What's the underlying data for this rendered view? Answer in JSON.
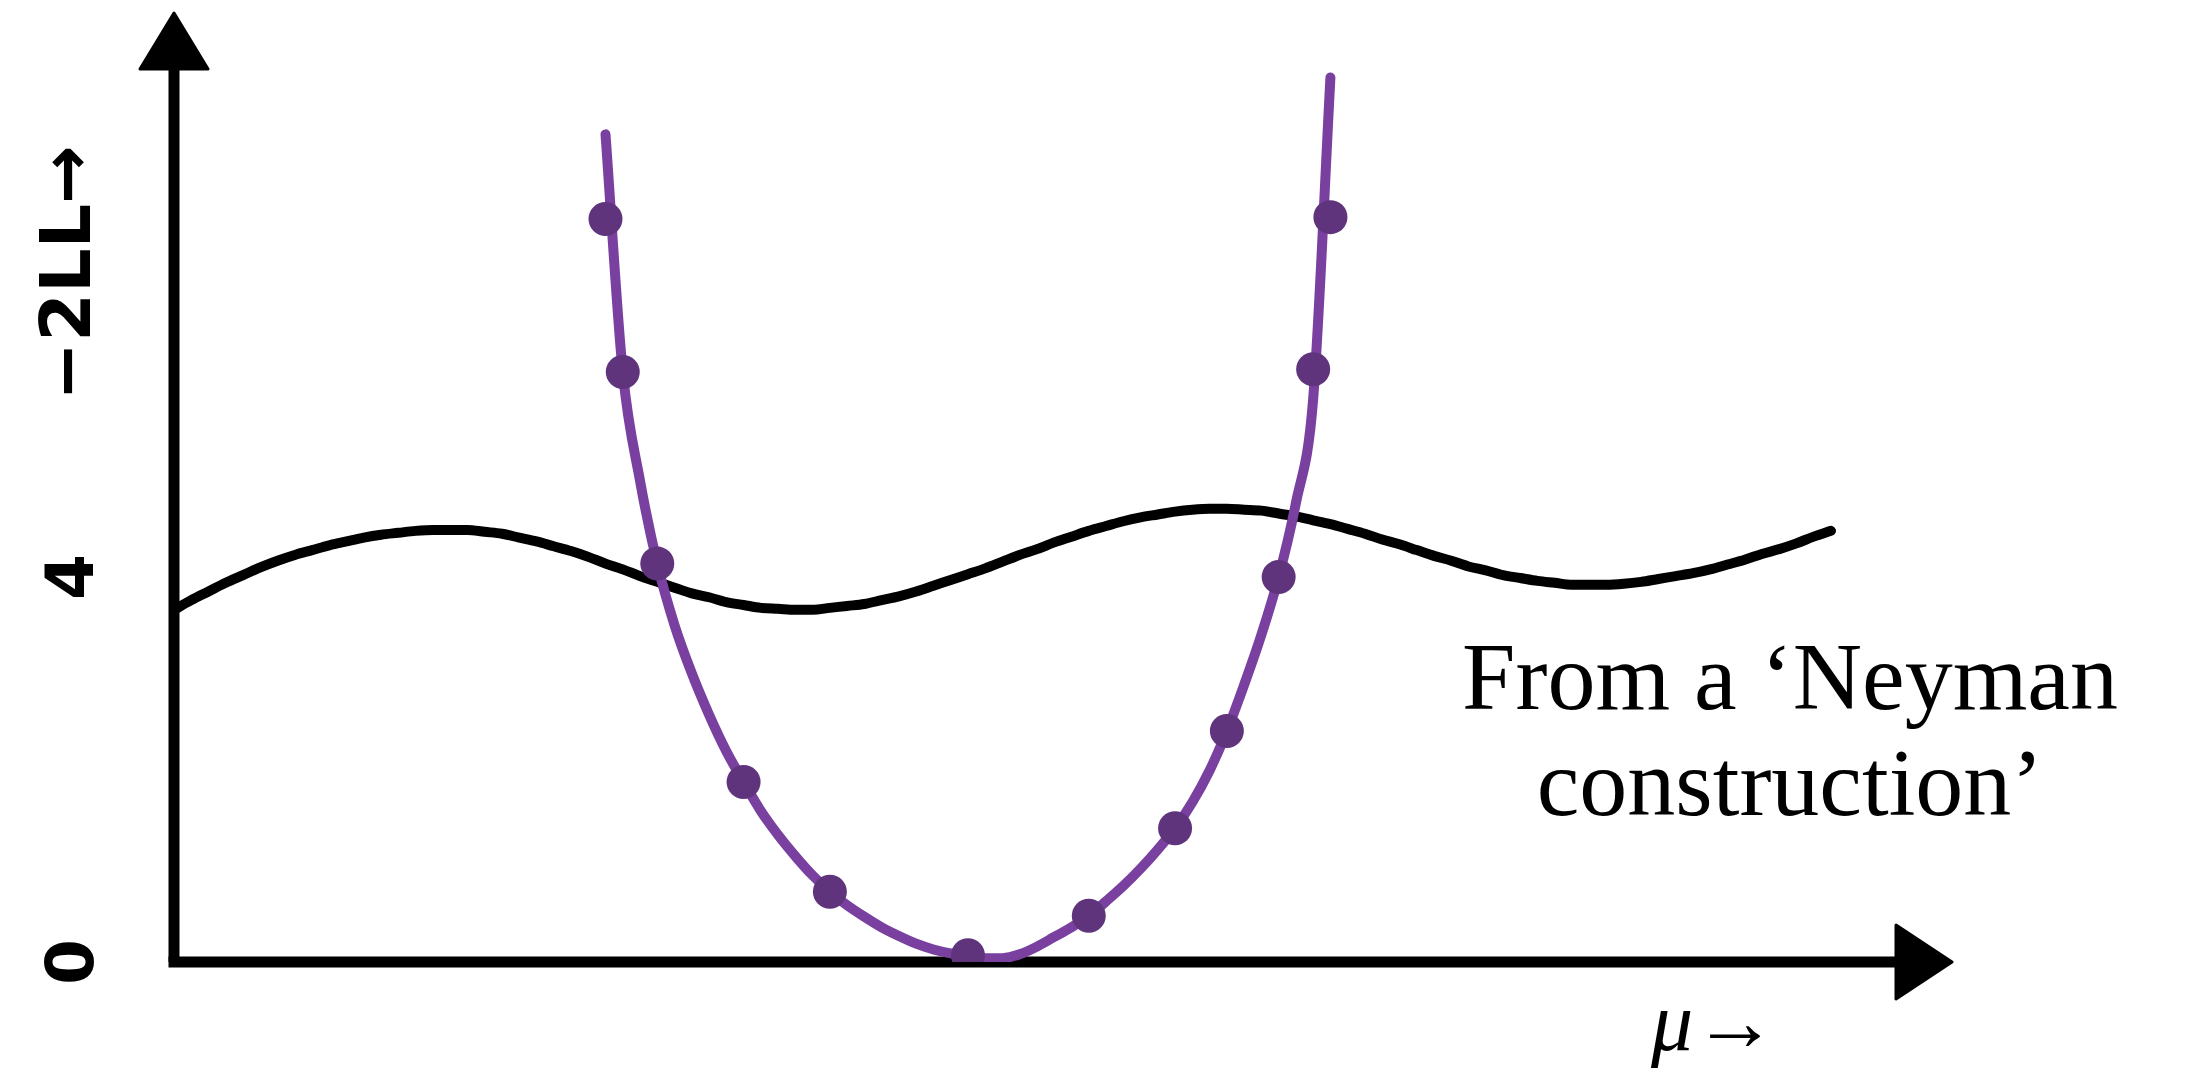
{
  "chart_data": {
    "type": "line",
    "xlabel": "μ→",
    "ylabel": "−2LL→",
    "annotations": [
      "From a ‘Neyman construction’"
    ],
    "categories": [
      null,
      null,
      null,
      null,
      null,
      null,
      null,
      null,
      null,
      null,
      null,
      null,
      null,
      null,
      null,
      null,
      null,
      null,
      null,
      null,
      null,
      null,
      null,
      null,
      null,
      null,
      null,
      null,
      null,
      null,
      null,
      null,
      null,
      null,
      null,
      null,
      null,
      null,
      null,
      null,
      null,
      null,
      null,
      null,
      null,
      null,
      null,
      null,
      null,
      null,
      null,
      null,
      null,
      null,
      null,
      null,
      null,
      null,
      null,
      null,
      null,
      null,
      null,
      null,
      null,
      null,
      null,
      null,
      null,
      null,
      null,
      null,
      null,
      null,
      null,
      null,
      null,
      null,
      null,
      null,
      null,
      null,
      null,
      null,
      null,
      null,
      null,
      null,
      null,
      null,
      null,
      null,
      null,
      null,
      null,
      null,
      null,
      null,
      null,
      null,
      null
    ],
    "series": [
      {
        "color": "#000000",
        "values": [
          3.66,
          3.76,
          3.85,
          3.94,
          4.02,
          4.1,
          4.17,
          4.23,
          4.28,
          4.33,
          4.37,
          4.41,
          4.44,
          4.46,
          4.48,
          4.49,
          4.49,
          4.49,
          4.47,
          4.45,
          4.41,
          4.37,
          4.32,
          4.27,
          4.21,
          4.14,
          4.08,
          4.01,
          3.95,
          3.89,
          3.83,
          3.79,
          3.74,
          3.71,
          3.68,
          3.67,
          3.66,
          3.66,
          3.68,
          3.7,
          3.72,
          3.76,
          3.8,
          3.85,
          3.91,
          3.97,
          4.03,
          4.09,
          4.16,
          4.23,
          4.29,
          4.36,
          4.42,
          4.48,
          4.53,
          4.58,
          4.62,
          4.65,
          4.68,
          4.7,
          4.71,
          4.71,
          4.7,
          4.69,
          4.66,
          4.63,
          4.59,
          4.55,
          4.5,
          4.45,
          4.39,
          4.34,
          4.28,
          4.22,
          4.17,
          4.11,
          4.07,
          4.02,
          3.99,
          3.96,
          3.94,
          3.92,
          3.92,
          3.92,
          3.93,
          3.95,
          3.98,
          4.01,
          4.04,
          4.08,
          4.13,
          4.18,
          4.24,
          4.29,
          4.35,
          4.42,
          4.48,
          null,
          null,
          null,
          null
        ]
      },
      {
        "color": "#7a40a0",
        "values": [
          null,
          null,
          null,
          null,
          null,
          null,
          null,
          null,
          null,
          null,
          null,
          null,
          null,
          null,
          null,
          null,
          null,
          null,
          null,
          null,
          null,
          null,
          null,
          null,
          null,
          8.6,
          6.13,
          5.0,
          4.14,
          3.5,
          3.0,
          2.57,
          2.19,
          1.87,
          1.57,
          1.32,
          1.1,
          0.9,
          0.73,
          0.59,
          0.47,
          0.36,
          0.27,
          0.19,
          0.13,
          0.09,
          0.07,
          0.04,
          0.04,
          0.08,
          0.16,
          0.26,
          0.36,
          0.48,
          0.63,
          0.79,
          0.97,
          1.17,
          1.39,
          1.66,
          1.99,
          2.4,
          2.88,
          3.4,
          4.0,
          4.77,
          5.85,
          9.19,
          null,
          null,
          null,
          null,
          null,
          null,
          null,
          null,
          null,
          null,
          null,
          null,
          null,
          null,
          null,
          null,
          null,
          null,
          null,
          null,
          null,
          null,
          null,
          null,
          null,
          null,
          null,
          null,
          null,
          null,
          null,
          null,
          null
        ]
      },
      {
        "type": "scatter",
        "color": "#5f347d",
        "marker": "circle",
        "values": [
          null,
          null,
          null,
          null,
          null,
          null,
          null,
          null,
          null,
          null,
          null,
          null,
          null,
          null,
          null,
          null,
          null,
          null,
          null,
          null,
          null,
          null,
          null,
          null,
          null,
          7.72,
          6.13,
          null,
          4.14,
          null,
          null,
          null,
          null,
          1.87,
          null,
          null,
          null,
          null,
          0.73,
          null,
          null,
          null,
          null,
          null,
          null,
          null,
          0.07,
          null,
          null,
          null,
          null,
          null,
          null,
          0.48,
          null,
          null,
          null,
          null,
          1.39,
          null,
          null,
          2.4,
          null,
          null,
          4.0,
          null,
          6.16,
          7.74,
          null,
          null,
          null,
          null,
          null,
          null,
          null,
          null,
          null,
          null,
          null,
          null,
          null,
          null,
          null,
          null,
          null,
          null,
          null,
          null,
          null,
          null,
          null,
          null,
          null,
          null,
          null,
          null,
          null,
          null,
          null,
          null,
          null
        ]
      }
    ],
    "ylim": [
      0,
      9.3
    ],
    "yticks": [
      0,
      4
    ],
    "grid": false,
    "legend": false,
    "tick_labels": "y",
    "marker": "none"
  }
}
